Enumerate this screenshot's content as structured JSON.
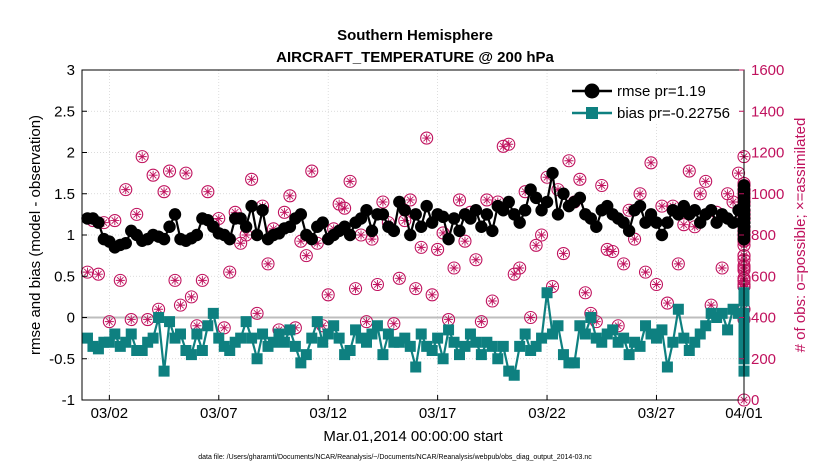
{
  "chart_data": {
    "type": "line",
    "title": "Southern Hemisphere",
    "subtitle": "AIRCRAFT_TEMPERATURE @ 200 hPa",
    "xlabel": "Mar.01,2014 00:00:00 start",
    "ylabel": "rmse and bias (model - observation)",
    "ylabel_right": "# of obs: o=possible; ×=assimilated",
    "footnote": "data file: /Users/gharamti/Documents/NCAR/Reanalysis/~/Documents/NCAR/Reanalysis/webpub/obs_diag_output_2014-03.nc",
    "x_range_days": [
      0.75,
      31.0
    ],
    "ylim": [
      -1,
      3
    ],
    "y_ticks": [
      -1,
      -0.5,
      0,
      0.5,
      1,
      1.5,
      2,
      2.5,
      3
    ],
    "y_tick_labels": [
      "-1",
      "-0.5",
      "0",
      "0.5",
      "1",
      "1.5",
      "2",
      "2.5",
      "3"
    ],
    "ylim_right": [
      0,
      1600
    ],
    "y_ticks_right": [
      0,
      200,
      400,
      600,
      800,
      1000,
      1200,
      1400,
      1600
    ],
    "y_tick_labels_right": [
      "0",
      "200",
      "400",
      "600",
      "800",
      "1000",
      "1200",
      "1400",
      "1600"
    ],
    "x_ticks": [
      2,
      7,
      12,
      17,
      22,
      27,
      32
    ],
    "x_tick_labels": [
      "03/02",
      "03/07",
      "03/12",
      "03/17",
      "03/22",
      "03/27",
      "04/01"
    ],
    "zero_line": 0,
    "grid": true,
    "legend_position": "top-right",
    "colors": {
      "rmse": "#000000",
      "bias": "#0e8080",
      "obs": "#c0125e",
      "zero": "#bdbdbd",
      "grid": "#d0d0d0"
    },
    "series": [
      {
        "name": "rmse pr=1.19",
        "marker": "circle",
        "values": [
          1.2,
          1.2,
          1.15,
          0.95,
          0.92,
          0.85,
          0.88,
          0.9,
          1.05,
          1.0,
          0.93,
          0.95,
          1.0,
          0.98,
          0.95,
          1.1,
          1.25,
          0.95,
          0.93,
          0.96,
          1.0,
          1.2,
          1.18,
          1.1,
          1.02,
          1.0,
          0.95,
          1.2,
          1.2,
          1.1,
          1.35,
          1.0,
          1.3,
          0.95,
          1.0,
          1.02,
          1.08,
          1.1,
          1.2,
          1.25,
          1.0,
          0.95,
          1.1,
          1.15,
          0.95,
          1.0,
          1.05,
          1.1,
          1.0,
          1.15,
          1.2,
          1.3,
          1.05,
          1.25,
          1.25,
          1.1,
          1.05,
          1.4,
          1.3,
          1.0,
          1.25,
          1.1,
          1.35,
          1.15,
          1.25,
          1.22,
          0.95,
          1.2,
          1.05,
          1.25,
          1.2,
          1.3,
          1.1,
          1.25,
          1.05,
          1.35,
          1.3,
          1.4,
          1.25,
          1.15,
          1.3,
          1.55,
          1.45,
          1.3,
          1.4,
          1.75,
          1.25,
          1.5,
          1.35,
          1.4,
          1.45,
          1.25,
          1.2,
          1.1,
          1.3,
          1.35,
          1.25,
          1.2,
          1.15,
          1.05,
          1.3,
          1.35,
          1.15,
          1.25,
          1.15,
          1.0,
          1.15,
          1.3,
          1.25,
          1.35,
          1.25,
          1.3,
          1.15,
          1.25,
          1.3,
          1.15,
          1.25,
          1.2,
          1.15,
          1.3,
          1.25,
          1.05,
          1.15,
          1.2,
          1.35,
          1.25,
          1.2,
          1.1,
          1.55,
          1.25,
          1.1,
          1.35,
          1.4,
          1.1,
          1.3,
          1.2,
          1.35,
          1.25,
          1.45,
          1.2,
          1.25,
          1.4,
          1.55,
          1.15,
          1.3,
          1.3,
          1.15,
          1.3,
          1.05,
          1.15,
          1.5,
          1.3,
          1.2,
          1.6,
          1.15,
          1.1,
          1.25,
          1.15,
          1.1,
          1.05,
          0.95,
          1.1,
          1.0,
          0.95,
          1.05,
          1.15,
          1.1,
          1.0,
          1.05,
          1.15,
          1.0,
          1.2,
          1.1,
          1.2,
          1.15
        ]
      },
      {
        "name": "bias pr=-0.22756",
        "marker": "square",
        "values": [
          -0.25,
          -0.35,
          -0.38,
          -0.3,
          -0.3,
          -0.2,
          -0.35,
          -0.3,
          -0.2,
          -0.4,
          -0.4,
          -0.3,
          -0.25,
          0.0,
          -0.65,
          -0.05,
          -0.25,
          -0.2,
          -0.4,
          -0.45,
          -0.2,
          -0.4,
          -0.1,
          0.05,
          -0.25,
          -0.35,
          -0.4,
          -0.3,
          -0.25,
          -0.05,
          -0.25,
          -0.5,
          -0.2,
          -0.35,
          -0.3,
          -0.2,
          -0.3,
          -0.15,
          -0.35,
          -0.55,
          -0.45,
          -0.25,
          -0.05,
          -0.3,
          -0.2,
          -0.1,
          -0.25,
          -0.45,
          -0.4,
          -0.15,
          -0.25,
          -0.3,
          -0.2,
          -0.1,
          -0.45,
          -0.2,
          -0.3,
          -0.3,
          -0.25,
          -0.35,
          -0.6,
          -0.2,
          -0.35,
          -0.4,
          -0.25,
          -0.5,
          -0.15,
          -0.3,
          -0.45,
          -0.35,
          -0.2,
          -0.3,
          -0.45,
          -0.3,
          -0.35,
          -0.5,
          -0.35,
          -0.65,
          -0.7,
          -0.35,
          -0.2,
          -0.4,
          -0.35,
          -0.25,
          0.3,
          -0.2,
          -0.1,
          -0.45,
          -0.55,
          -0.55,
          -0.1,
          -0.2,
          0.0,
          -0.25,
          -0.3,
          -0.2,
          -0.15,
          -0.3,
          -0.25,
          -0.45,
          -0.3,
          -0.35,
          -0.1,
          -0.2,
          -0.25,
          -0.15,
          -0.6,
          -0.3,
          0.1,
          -0.25,
          -0.4,
          -0.3,
          -0.2,
          -0.1,
          0.05,
          0.0,
          0.05,
          -0.15,
          0.1,
          0.05,
          0.2,
          -0.3,
          0.25,
          -0.05,
          -0.15,
          -0.1,
          0.05,
          -0.2,
          -0.35,
          -0.3,
          -0.25,
          -0.5,
          -0.4,
          -0.25,
          -0.4,
          -0.2,
          -0.15,
          0.0,
          0.3,
          0.2,
          -0.3,
          -0.1,
          -0.25,
          -0.5,
          -0.35,
          -0.3,
          -0.2,
          -0.45,
          -0.25,
          -0.4,
          -0.4,
          -0.2,
          -0.65,
          -0.4,
          -0.1,
          -0.2,
          -0.3,
          -0.1,
          -0.3,
          -0.35,
          -0.2,
          -0.3,
          -0.15,
          -0.3,
          -0.25,
          -0.2,
          -0.1,
          0.0,
          -0.2,
          -0.3,
          -0.1,
          0.05
        ]
      },
      {
        "name": "obs possible",
        "axis": "right",
        "marker": "circle-open",
        "values": [
          620,
          870,
          610,
          860,
          380,
          870,
          580,
          1020,
          390,
          900,
          1180,
          390,
          1090,
          440,
          1010,
          1110,
          580,
          460,
          1100,
          500,
          360,
          580,
          1010,
          850,
          880,
          350,
          620,
          910,
          760,
          800,
          1070,
          420,
          940,
          660,
          830,
          340,
          910,
          990,
          350,
          770,
          700,
          1110,
          760,
          360,
          510,
          830,
          950,
          930,
          1060,
          540,
          800,
          380,
          780,
          560,
          960,
          860,
          370,
          590,
          870,
          970,
          540,
          740,
          1270,
          510,
          730,
          810,
          390,
          640,
          970,
          770,
          910,
          680,
          380,
          970,
          480,
          960,
          1230,
          1240,
          610,
          640,
          1010,
          400,
          750,
          800,
          1080,
          550,
          1020,
          710,
          1160,
          960,
          1070,
          520,
          420,
          380,
          1040,
          730,
          720,
          360,
          660,
          920,
          780,
          1000,
          620,
          1150,
          560,
          940,
          470,
          940,
          660,
          850,
          1110,
          840,
          1000,
          1060,
          460,
          910,
          640,
          1000,
          960,
          1100,
          680,
          890,
          440,
          1180,
          920,
          750,
          1000,
          880,
          640,
          960,
          560,
          1000,
          390,
          800,
          920,
          880,
          580,
          970,
          910,
          780,
          990,
          1010,
          800,
          880,
          770,
          840,
          590,
          810,
          960,
          650,
          1040,
          790,
          550,
          950,
          890,
          700,
          990,
          780,
          590,
          630,
          1000,
          880,
          790,
          830,
          1020,
          700,
          900,
          980,
          550,
          1050,
          580,
          0
        ]
      }
    ]
  }
}
